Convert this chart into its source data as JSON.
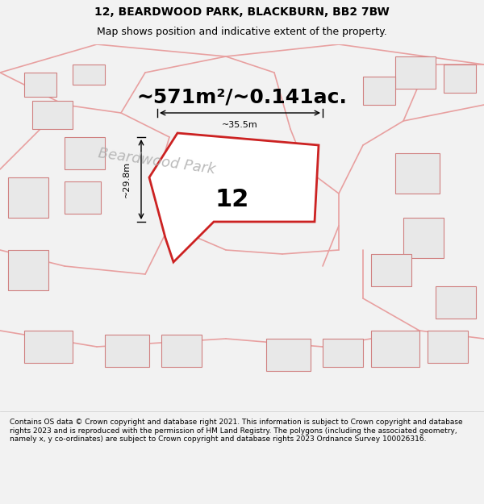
{
  "title_line1": "12, BEARDWOOD PARK, BLACKBURN, BB2 7BW",
  "title_line2": "Map shows position and indicative extent of the property.",
  "area_text": "~571m²/~0.141ac.",
  "property_number": "12",
  "dim_width": "~35.5m",
  "dim_height": "~29.8m",
  "road_label": "Beardwood Park",
  "footer": "Contains OS data © Crown copyright and database right 2021. This information is subject to Crown copyright and database rights 2023 and is reproduced with the permission of HM Land Registry. The polygons (including the associated geometry, namely x, y co-ordinates) are subject to Crown copyright and database rights 2023 Ordnance Survey 100026316.",
  "bg_color": "#f2f2f2",
  "map_bg": "#f2f2f2",
  "road_color": "#e8a0a0",
  "building_fill": "#e8e8e8",
  "building_edge": "#d08080",
  "property_fill": "#ffffff",
  "property_edge": "#cc2222",
  "title_fontsize": 10,
  "subtitle_fontsize": 9,
  "area_fontsize": 18,
  "number_fontsize": 22,
  "road_label_fontsize": 13,
  "footer_fontsize": 6.5
}
